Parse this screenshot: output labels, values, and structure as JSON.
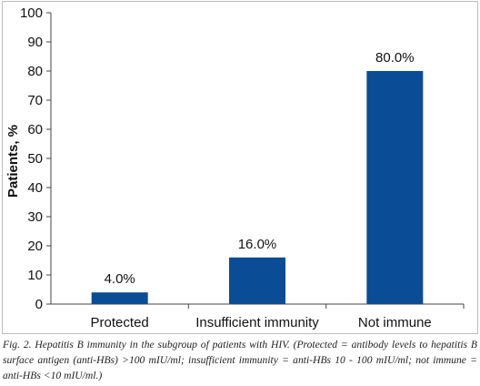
{
  "chart_data": {
    "type": "bar",
    "categories": [
      "Protected",
      "Insufficient immunity",
      "Not immune"
    ],
    "values": [
      4.0,
      16.0,
      80.0
    ],
    "value_labels": [
      "4.0%",
      "16.0%",
      "80.0%"
    ],
    "ylabel": "Patients, %",
    "xlabel": "",
    "ylim": [
      0,
      100
    ],
    "yticks": [
      0,
      10,
      20,
      30,
      40,
      50,
      60,
      70,
      80,
      90,
      100
    ],
    "grid": false,
    "bar_color": "#0b4c96"
  },
  "caption": "Fig. 2. Hepatitis B immunity in the subgroup of patients with HIV. (Protected = antibody levels to hepatitis B surface antigen (anti-HBs) >100 mIU/ml; insufficient immunity = anti-HBs 10 - 100 mIU/ml; not immune = anti-HBs <10 mIU/ml.)"
}
